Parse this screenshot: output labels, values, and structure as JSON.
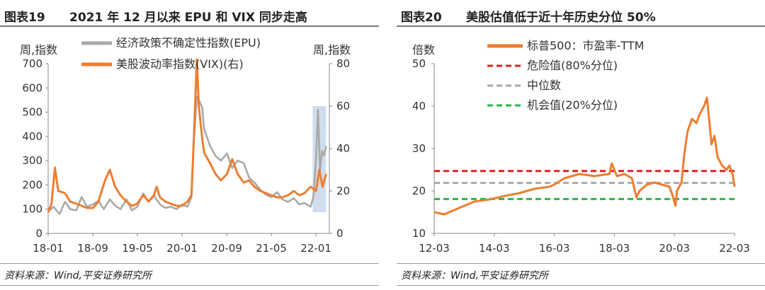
{
  "panels": [
    {
      "figure_no": "图表19",
      "title": "2021 年 12 月以来 EPU 和 VIX 同步走高",
      "source": "资料来源：Wind,平安证券研究所"
    },
    {
      "figure_no": "图表20",
      "title": "美股估值低于近十年历史分位 50%",
      "source": "资料来源：Wind,平安证券研究所"
    }
  ],
  "chart_data": [
    {
      "type": "line",
      "title": "2021 年 12 月以来 EPU 和 VIX 同步走高",
      "ylabel": "周,指数",
      "ylabel_right": "周,指数",
      "ylim": [
        0,
        700
      ],
      "yticks": [
        0,
        100,
        200,
        300,
        400,
        500,
        600,
        700
      ],
      "ylim_right": [
        0,
        80
      ],
      "yticks_right": [
        0,
        20,
        40,
        60,
        80
      ],
      "x_range": [
        2018.0,
        2022.2
      ],
      "xticks": [
        {
          "x": 2018.0,
          "label": "18-01"
        },
        {
          "x": 2018.667,
          "label": "18-09"
        },
        {
          "x": 2019.333,
          "label": "19-05"
        },
        {
          "x": 2020.0,
          "label": "20-01"
        },
        {
          "x": 2020.667,
          "label": "20-09"
        },
        {
          "x": 2021.333,
          "label": "21-05"
        },
        {
          "x": 2022.0,
          "label": "22-01"
        }
      ],
      "highlight": {
        "x_from": 2021.95,
        "x_to": 2022.15,
        "y_from": 10,
        "y_to": 60,
        "axis": "right",
        "color": "#c9d7ea"
      },
      "series": [
        {
          "name": "经济政策不确定性指数(EPU)",
          "axis": "left",
          "color": "#a9a9a9",
          "x": [
            2018.0,
            2018.08,
            2018.17,
            2018.25,
            2018.33,
            2018.42,
            2018.5,
            2018.58,
            2018.67,
            2018.75,
            2018.83,
            2018.92,
            2019.0,
            2019.08,
            2019.17,
            2019.25,
            2019.33,
            2019.42,
            2019.5,
            2019.58,
            2019.67,
            2019.75,
            2019.83,
            2019.92,
            2020.0,
            2020.08,
            2020.14,
            2020.17,
            2020.2,
            2020.22,
            2020.25,
            2020.3,
            2020.33,
            2020.42,
            2020.5,
            2020.58,
            2020.67,
            2020.75,
            2020.83,
            2020.92,
            2021.0,
            2021.08,
            2021.17,
            2021.25,
            2021.33,
            2021.42,
            2021.5,
            2021.58,
            2021.67,
            2021.75,
            2021.83,
            2021.92,
            2021.96,
            2022.0,
            2022.03,
            2022.06,
            2022.09,
            2022.12,
            2022.15
          ],
          "values": [
            90,
            110,
            80,
            130,
            100,
            95,
            150,
            110,
            120,
            135,
            100,
            140,
            115,
            100,
            140,
            95,
            110,
            165,
            130,
            155,
            120,
            105,
            110,
            100,
            120,
            110,
            150,
            360,
            480,
            565,
            550,
            520,
            430,
            360,
            320,
            300,
            330,
            270,
            300,
            290,
            230,
            210,
            180,
            160,
            150,
            170,
            140,
            130,
            145,
            120,
            125,
            110,
            150,
            300,
            510,
            260,
            340,
            320,
            360
          ]
        },
        {
          "name": "美股波动率指数(VIX)(右)",
          "axis": "right",
          "color": "#ed7d31",
          "x": [
            2018.0,
            2018.05,
            2018.1,
            2018.15,
            2018.25,
            2018.33,
            2018.42,
            2018.5,
            2018.58,
            2018.67,
            2018.75,
            2018.8,
            2018.85,
            2018.92,
            2019.0,
            2019.08,
            2019.17,
            2019.25,
            2019.33,
            2019.42,
            2019.5,
            2019.58,
            2019.62,
            2019.67,
            2019.75,
            2019.83,
            2019.92,
            2020.0,
            2020.08,
            2020.14,
            2020.17,
            2020.2,
            2020.22,
            2020.25,
            2020.3,
            2020.33,
            2020.42,
            2020.5,
            2020.58,
            2020.67,
            2020.75,
            2020.83,
            2020.92,
            2021.0,
            2021.08,
            2021.17,
            2021.25,
            2021.33,
            2021.42,
            2021.5,
            2021.58,
            2021.67,
            2021.75,
            2021.83,
            2021.92,
            2022.0,
            2022.05,
            2022.1,
            2022.15
          ],
          "values": [
            10,
            14,
            31,
            20,
            19,
            15,
            14,
            13,
            12,
            12,
            15,
            20,
            25,
            30,
            22,
            18,
            15,
            13,
            14,
            18,
            15,
            18,
            22,
            17,
            15,
            14,
            13,
            13,
            15,
            18,
            40,
            65,
            82,
            60,
            45,
            38,
            33,
            28,
            25,
            28,
            35,
            28,
            24,
            25,
            22,
            20,
            19,
            18,
            17,
            17,
            18,
            20,
            18,
            19,
            22,
            20,
            30,
            22,
            28
          ]
        }
      ]
    },
    {
      "type": "line",
      "title": "美股估值低于近十年历史分位 50%",
      "ylabel": "倍数",
      "ylim": [
        10,
        50
      ],
      "yticks": [
        10,
        20,
        30,
        40,
        50
      ],
      "x_range": [
        2012.167,
        2022.167
      ],
      "xticks": [
        {
          "x": 2012.167,
          "label": "12-03"
        },
        {
          "x": 2014.167,
          "label": "14-03"
        },
        {
          "x": 2016.167,
          "label": "16-03"
        },
        {
          "x": 2018.167,
          "label": "18-03"
        },
        {
          "x": 2020.167,
          "label": "20-03"
        },
        {
          "x": 2022.167,
          "label": "22-03"
        }
      ],
      "series": [
        {
          "name": "标普500：市盈率-TTM",
          "color": "#ed7d31",
          "x": [
            2012.167,
            2012.5,
            2013.0,
            2013.5,
            2014.0,
            2014.5,
            2015.0,
            2015.5,
            2016.0,
            2016.167,
            2016.5,
            2017.0,
            2017.5,
            2018.0,
            2018.08,
            2018.25,
            2018.5,
            2018.75,
            2018.9,
            2019.0,
            2019.25,
            2019.5,
            2019.75,
            2020.0,
            2020.1,
            2020.2,
            2020.25,
            2020.4,
            2020.5,
            2020.6,
            2020.75,
            2020.9,
            2021.0,
            2021.15,
            2021.25,
            2021.4,
            2021.5,
            2021.6,
            2021.75,
            2021.9,
            2022.0,
            2022.1,
            2022.167
          ],
          "values": [
            15,
            14.5,
            16,
            17.5,
            18,
            18.8,
            19.5,
            20.5,
            21,
            21.5,
            23,
            24,
            23.5,
            24,
            26.5,
            23.5,
            24,
            23,
            18.5,
            20,
            21.5,
            22,
            21.5,
            21,
            19,
            16.5,
            20,
            22,
            29,
            34,
            37,
            36,
            38,
            40,
            42,
            31,
            33,
            28,
            26,
            25,
            26,
            24,
            21
          ]
        },
        {
          "name": "危险值(80%分位)",
          "color": "#e02020",
          "dashed": true,
          "values": [
            24.7
          ]
        },
        {
          "name": "中位数",
          "color": "#a9a9a9",
          "dashed": true,
          "values": [
            21.9
          ]
        },
        {
          "name": "机会值(20%分位)",
          "color": "#2fb34a",
          "dashed": true,
          "values": [
            18.1
          ]
        }
      ]
    }
  ]
}
